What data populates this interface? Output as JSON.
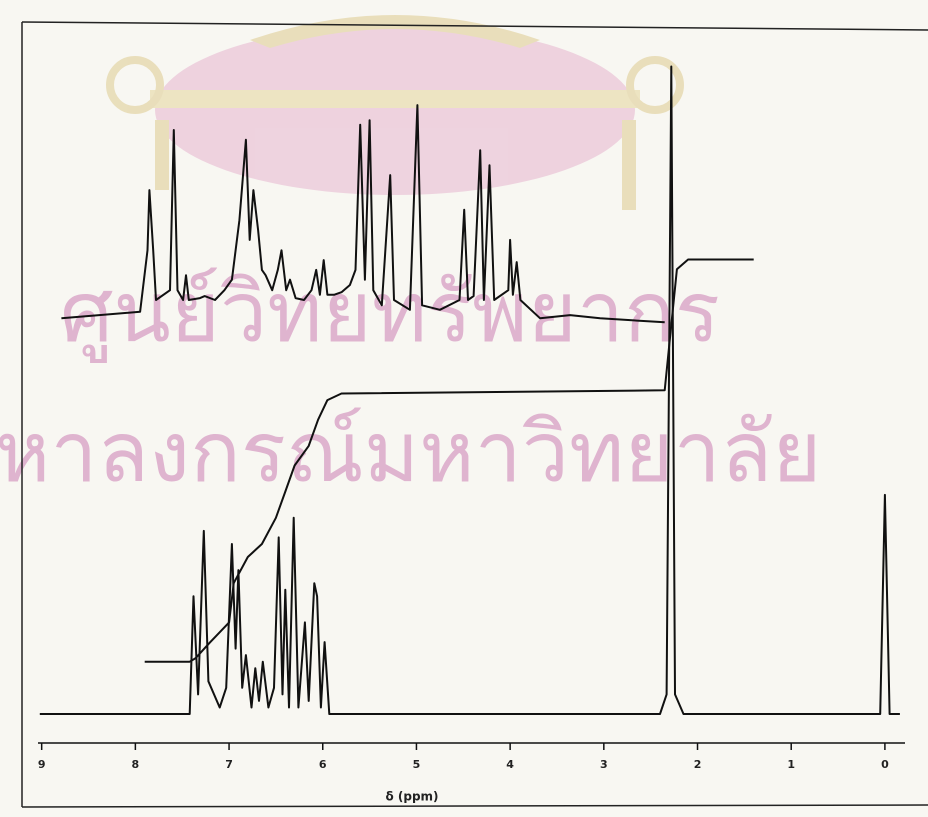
{
  "chart_data": {
    "type": "line",
    "watermark": [
      "ศูนย์วิทยทรัพยากร",
      "หาลงกรณ์มหาวิทยาลัย"
    ],
    "xlabel": "δ (ppm)",
    "xlim": [
      9.21,
      -0.46
    ],
    "ylim": [
      0,
      100
    ],
    "xticks": [
      9,
      8,
      7,
      6,
      5,
      4,
      3,
      2,
      1,
      0
    ],
    "series": [
      {
        "color": "#111111",
        "x": [
          9.02,
          7.42,
          7.38,
          7.33,
          7.27,
          7.22,
          7.1,
          7.03,
          6.97,
          6.93,
          6.9,
          6.86,
          6.82,
          6.76,
          6.72,
          6.68,
          6.64,
          6.58,
          6.52,
          6.47,
          6.43,
          6.4,
          6.36,
          6.31,
          6.26,
          6.19,
          6.15,
          6.09,
          6.06,
          6.02,
          5.98,
          5.93,
          5.5,
          3.0,
          2.4,
          2.33,
          2.28,
          2.24,
          2.15,
          1.0,
          0.05,
          0.0,
          -0.05,
          -0.16
        ],
        "values": [
          0,
          0,
          18,
          3,
          28,
          5,
          1,
          4,
          26,
          10,
          22,
          4,
          9,
          1,
          7,
          2,
          8,
          1,
          4,
          27,
          3,
          19,
          1,
          30,
          1,
          14,
          2,
          20,
          18,
          1,
          11,
          0,
          0,
          0,
          0,
          3,
          99,
          3,
          0,
          0,
          0,
          33.5,
          0,
          0
        ]
      },
      {
        "color": "#111111",
        "x": [
          7.9,
          7.42,
          7.36,
          7.2,
          7.0,
          6.95,
          6.8,
          6.65,
          6.5,
          6.4,
          6.3,
          6.15,
          6.05,
          5.95,
          5.8,
          2.35,
          2.22,
          2.1,
          1.4
        ],
        "values": [
          8,
          8,
          8.5,
          11,
          14,
          20,
          24,
          26,
          30,
          34,
          38,
          41,
          45,
          48,
          49,
          49.5,
          68,
          69.5,
          69.5
        ]
      },
      {
        "color": "#111111",
        "x": [
          8.79,
          7.95,
          7.87,
          7.85,
          7.81,
          7.78,
          7.63,
          7.59,
          7.55,
          7.49,
          7.46,
          7.43,
          7.31,
          7.26,
          7.15,
          7.05,
          6.97,
          6.89,
          6.82,
          6.78,
          6.74,
          6.69,
          6.65,
          6.61,
          6.54,
          6.48,
          6.44,
          6.39,
          6.35,
          6.29,
          6.2,
          6.12,
          6.07,
          6.03,
          5.99,
          5.95,
          5.88,
          5.8,
          5.71,
          5.65,
          5.6,
          5.55,
          5.5,
          5.46,
          5.37,
          5.28,
          5.24,
          5.07,
          4.99,
          4.94,
          4.75,
          4.54,
          4.49,
          4.45,
          4.39,
          4.32,
          4.28,
          4.22,
          4.17,
          4.02,
          4.0,
          3.97,
          3.93,
          3.89,
          3.68,
          3.36,
          3.04,
          2.35
        ],
        "values": [
          60.5,
          61.5,
          70.9,
          80.1,
          70.9,
          63.3,
          64.8,
          89.3,
          64.8,
          63.3,
          67.1,
          63.3,
          63.6,
          63.9,
          63.3,
          64.8,
          66.4,
          75.5,
          87.8,
          72.5,
          80.1,
          74.0,
          67.9,
          67.1,
          64.8,
          67.9,
          70.9,
          64.8,
          66.4,
          63.6,
          63.3,
          64.8,
          67.9,
          64.1,
          69.4,
          64.1,
          64.1,
          64.5,
          65.6,
          67.9,
          90.1,
          66.4,
          90.8,
          64.8,
          62.5,
          82.4,
          63.3,
          61.8,
          93.1,
          62.5,
          61.8,
          63.3,
          77.1,
          63.3,
          63.9,
          86.2,
          63.3,
          83.9,
          63.3,
          64.8,
          72.5,
          64.1,
          69.1,
          63.3,
          60.5,
          61.0,
          60.5,
          59.9
        ]
      }
    ]
  }
}
